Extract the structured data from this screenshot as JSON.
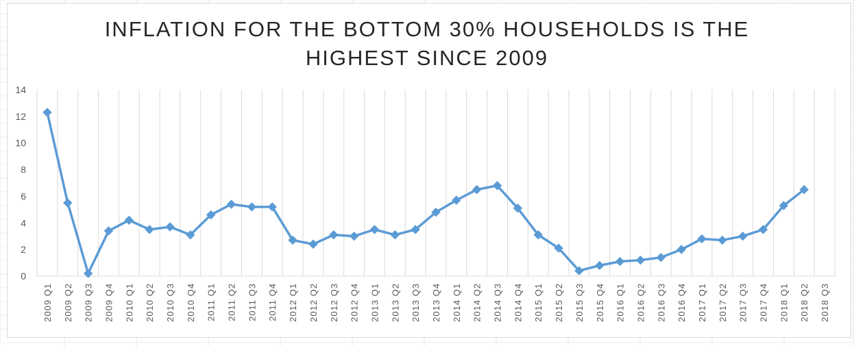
{
  "chart_data": {
    "type": "line",
    "title": "INFLATION FOR THE BOTTOM 30% HOUSEHOLDS IS THE HIGHEST SINCE 2009",
    "title_lines": [
      "INFLATION FOR THE BOTTOM 30% HOUSEHOLDS IS THE",
      "HIGHEST SINCE 2009"
    ],
    "xlabel": "",
    "ylabel": "",
    "ylim": [
      0,
      14
    ],
    "yticks": [
      0,
      2,
      4,
      6,
      8,
      10,
      12,
      14
    ],
    "grid": "vertical gridlines",
    "legend": "none",
    "line_color": "#5b9bd5",
    "categories": [
      "2009 Q1",
      "2009 Q2",
      "2009 Q3",
      "2009 Q4",
      "2010 Q1",
      "2010 Q2",
      "2010 Q3",
      "2010 Q4",
      "2011 Q1",
      "2011 Q2",
      "2011 Q3",
      "2011 Q4",
      "2012 Q1",
      "2012 Q2",
      "2012 Q3",
      "2012 Q4",
      "2013 Q1",
      "2013 Q2",
      "2013 Q3",
      "2013 Q4",
      "2014 Q1",
      "2014 Q2",
      "2014 Q3",
      "2014 Q4",
      "2015 Q1",
      "2015 Q2",
      "2015 Q3",
      "2015 Q4",
      "2016 Q1",
      "2016 Q2",
      "2016 Q3",
      "2016 Q4",
      "2017 Q1",
      "2017 Q2",
      "2017 Q3",
      "2017 Q4",
      "2018 Q1",
      "2018 Q2",
      "2018 Q3"
    ],
    "series": [
      {
        "values": [
          12.3,
          5.5,
          0.2,
          3.4,
          4.2,
          3.5,
          3.7,
          3.1,
          4.6,
          5.4,
          5.2,
          5.2,
          2.7,
          2.4,
          3.1,
          3.0,
          3.5,
          3.1,
          3.5,
          4.8,
          5.7,
          6.5,
          6.8,
          5.1,
          3.1,
          2.1,
          0.4,
          0.8,
          1.1,
          1.2,
          1.4,
          2.0,
          2.8,
          2.7,
          3.0,
          3.5,
          5.3,
          6.5,
          null
        ]
      }
    ]
  }
}
